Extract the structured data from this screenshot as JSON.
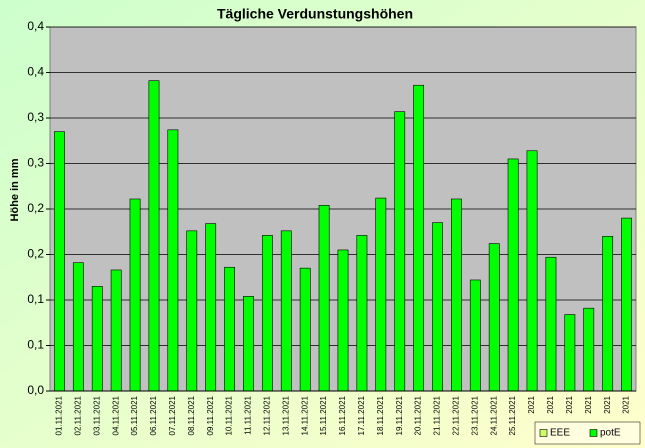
{
  "chart_data": {
    "type": "bar",
    "title": "Tägliche Verdunstungshöhen",
    "y_label": "Höhe in mm",
    "categories": [
      "01.11.2021",
      "02.11.2021",
      "03.11.2021",
      "04.11.2021",
      "05.11.2021",
      "06.11.2021",
      "07.11.2021",
      "08.11.2021",
      "09.11.2021",
      "10.11.2021",
      "11.11.2021",
      "12.11.2021",
      "13.11.2021",
      "14.11.2021",
      "15.11.2021",
      "16.11.2021",
      "17.11.2021",
      "18.11.2021",
      "19.11.2021",
      "20.11.2021",
      "21.11.2021",
      "22.11.2021",
      "23.11.2021",
      "24.11.2021",
      "25.11.2021",
      "2021",
      "2021",
      "2021",
      "2021",
      "2021",
      "2021"
    ],
    "series": [
      {
        "name": "EEE",
        "color": "#ccff66",
        "values": [
          null,
          null,
          null,
          null,
          null,
          null,
          null,
          null,
          null,
          null,
          null,
          null,
          null,
          null,
          null,
          null,
          null,
          null,
          null,
          null,
          null,
          null,
          null,
          null,
          null,
          null,
          null,
          null,
          null,
          null,
          null
        ]
      },
      {
        "name": "potE",
        "color": "#00ff00",
        "values": [
          0.285,
          0.141,
          0.115,
          0.133,
          0.211,
          0.341,
          0.287,
          0.176,
          0.184,
          0.136,
          0.104,
          0.171,
          0.176,
          0.135,
          0.204,
          0.155,
          0.171,
          0.212,
          0.307,
          0.336,
          0.185,
          0.211,
          0.122,
          0.162,
          0.255,
          0.264,
          0.147,
          0.084,
          0.091,
          0.17,
          0.19
        ]
      }
    ],
    "ylim": [
      0,
      0.4
    ],
    "yticks": [
      {
        "value": 0,
        "label": "0,0"
      },
      {
        "value": 0.05,
        "label": "0,1"
      },
      {
        "value": 0.1,
        "label": "0,1"
      },
      {
        "value": 0.15,
        "label": "0,2"
      },
      {
        "value": 0.2,
        "label": "0,2"
      },
      {
        "value": 0.25,
        "label": "0,3"
      },
      {
        "value": 0.3,
        "label": "0,3"
      },
      {
        "value": 0.35,
        "label": "0,4"
      },
      {
        "value": 0.4,
        "label": "0,4"
      }
    ],
    "grid": true,
    "legend": "bottom-right"
  }
}
